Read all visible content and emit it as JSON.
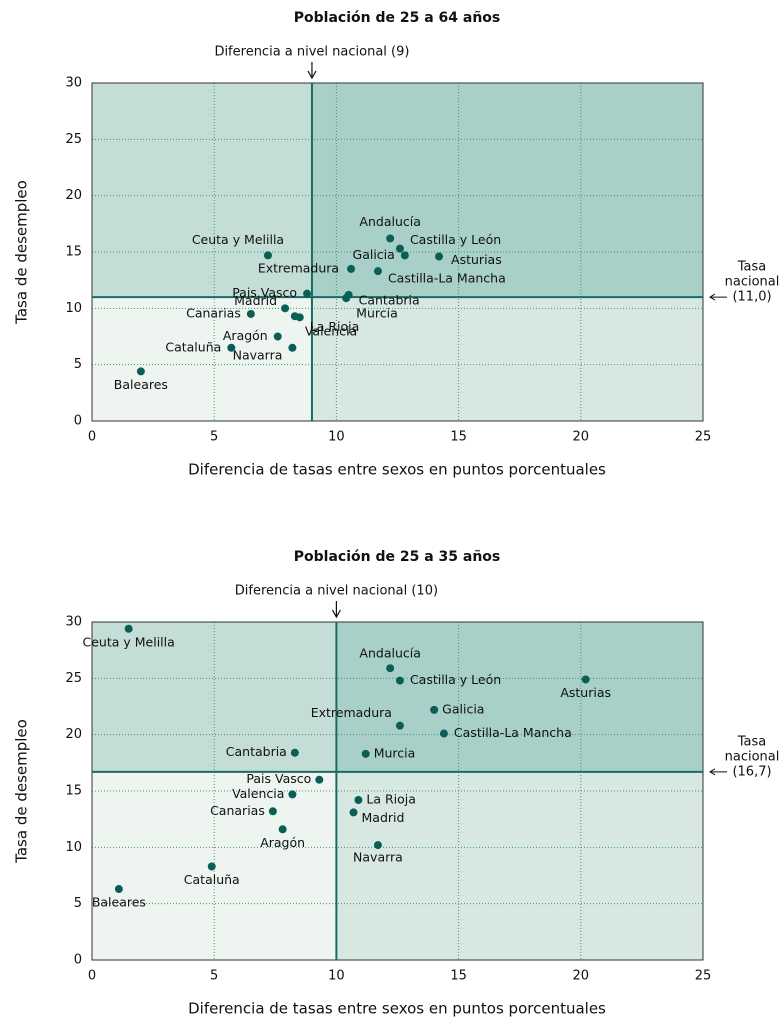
{
  "chart_data": [
    {
      "type": "scatter",
      "title": "Población de 25 a 64 años",
      "xlabel": "Diferencia de tasas entre sexos en puntos porcentuales",
      "ylabel": "Tasa de desempleo",
      "annotation_x": "Diferencia a nivel nacional (9)",
      "annotation_y": [
        "Tasa",
        "nacional",
        "(11,0)"
      ],
      "national_x": 9,
      "national_y": 11.0,
      "labels": [
        "Andalucía",
        "Castilla y León",
        "Asturias",
        "Galicia",
        "Ceuta y Melilla",
        "Extremadura",
        "Castilla-La Mancha",
        "Pais Vasco",
        "Cantabria",
        "Murcia",
        "Madrid",
        "Canarias",
        "Aragón",
        "Cataluña",
        "Navarra",
        "Valencia",
        "La Rioja",
        "Baleares"
      ],
      "x": [
        12.2,
        12.6,
        14.2,
        12.8,
        7.2,
        10.6,
        11.7,
        8.8,
        10.5,
        10.4,
        7.9,
        6.5,
        7.6,
        5.7,
        8.2,
        8.3,
        8.5,
        2.0
      ],
      "values": [
        16.2,
        15.3,
        14.6,
        14.7,
        14.7,
        13.5,
        13.3,
        11.3,
        11.2,
        10.9,
        10.0,
        9.5,
        7.5,
        6.5,
        6.5,
        9.3,
        9.2,
        4.4
      ],
      "color": "#0b5e55",
      "xlim": [
        0,
        25
      ],
      "xticks": [
        0,
        5,
        10,
        15,
        20,
        25
      ],
      "ylim": [
        0,
        30
      ],
      "yticks": [
        0,
        5,
        10,
        15,
        20,
        25,
        30
      ],
      "grid": true
    },
    {
      "type": "scatter",
      "title": "Población de 25 a 35 años",
      "xlabel": "Diferencia de tasas entre sexos en puntos porcentuales",
      "ylabel": "Tasa de desempleo",
      "annotation_x": "Diferencia a nivel nacional (10)",
      "annotation_y": [
        "Tasa",
        "nacional",
        "(16,7)"
      ],
      "national_x": 10,
      "national_y": 16.7,
      "labels": [
        "Ceuta y Melilla",
        "Andalucía",
        "Castilla y León",
        "Asturias",
        "Galicia",
        "Extremadura",
        "Castilla-La Mancha",
        "Cantabria",
        "Murcia",
        "Pais Vasco",
        "Valencia",
        "La Rioja",
        "Canarias",
        "Madrid",
        "Aragón",
        "Navarra",
        "Cataluña",
        "Baleares"
      ],
      "x": [
        1.5,
        12.2,
        12.6,
        20.2,
        14.0,
        12.6,
        14.4,
        8.3,
        11.2,
        9.3,
        8.2,
        10.9,
        7.4,
        10.7,
        7.8,
        11.7,
        4.9,
        1.1
      ],
      "values": [
        29.4,
        25.9,
        24.8,
        24.9,
        22.2,
        20.8,
        20.1,
        18.4,
        18.3,
        16.0,
        14.7,
        14.2,
        13.2,
        13.1,
        11.6,
        10.2,
        8.3,
        6.3
      ],
      "color": "#0b5e55",
      "xlim": [
        0,
        25
      ],
      "xticks": [
        0,
        5,
        10,
        15,
        20,
        25
      ],
      "ylim": [
        0,
        30
      ],
      "yticks": [
        0,
        5,
        10,
        15,
        20,
        25,
        30
      ],
      "grid": true
    }
  ]
}
